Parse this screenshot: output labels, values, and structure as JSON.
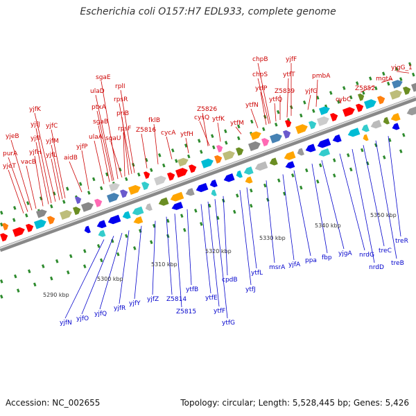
{
  "title": "Escherichia coli O157:H7 EDL933, complete genome",
  "accession": "Accession: NC_002655",
  "summary": "Topology: circular; Length: 5,528,445 bp; Genes: 5,426",
  "colors": {
    "forward_label": "#cc0000",
    "reverse_label": "#0000cc",
    "forward_gene": "#ff0000",
    "reverse_gene": "#0000ee",
    "dots": "#2e8b2e",
    "backbone": "#888888"
  },
  "scale_ticks": [
    "5290 kbp",
    "5300 kbp",
    "5310 kbp",
    "5320 kbp",
    "5330 kbp",
    "5340 kbp",
    "5350 kbp"
  ],
  "forward_genes": [
    "yjeT",
    "purA",
    "yjeB",
    "vacB",
    "yjfH",
    "yjfI",
    "yjfJ",
    "yjfK",
    "yjfL",
    "yjfM",
    "yjfC",
    "aidB",
    "yjfP",
    "ulaA",
    "sgaB",
    "ptxA",
    "ulaD",
    "sgaE",
    "sgaU",
    "rpsF",
    "priB",
    "rpsR",
    "rplI",
    "Z5816",
    "fklB",
    "cycA",
    "ytfH",
    "Z5826",
    "cysQ",
    "ytfK",
    "ytfM",
    "ytfN",
    "ytfP",
    "chpS",
    "chpB",
    "ytfQ",
    "Z5839",
    "ytfT",
    "yjfF",
    "yjfG",
    "pmbA",
    "cybC",
    "Z5852",
    "mgtA",
    "yjgG_1"
  ],
  "reverse_genes": [
    "yjfN",
    "yjfO",
    "yjfQ",
    "yjfR",
    "yjfY",
    "yjfZ",
    "Z5814",
    "Z5815",
    "ytfB",
    "ytfE",
    "ytfF",
    "ytfG",
    "cpdB",
    "ytfJ",
    "ytfL",
    "msrA",
    "yjfA",
    "ppa",
    "fbp",
    "yjgA",
    "nrdG",
    "nrdD",
    "treC",
    "treB",
    "treR"
  ]
}
